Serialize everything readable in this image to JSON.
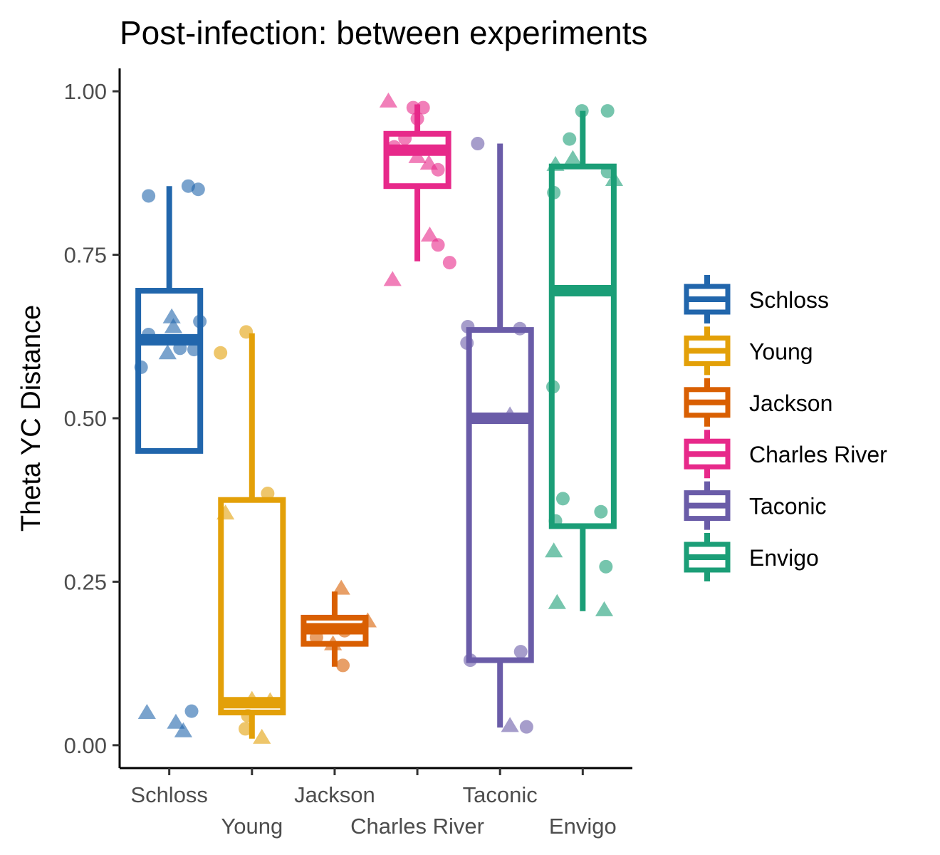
{
  "chart_data": {
    "type": "box",
    "title": "Post-infection: between experiments",
    "ylabel": "Theta YC Distance",
    "xlabel": "",
    "ylim": [
      -0.035,
      1.035
    ],
    "yticks": [
      "0.00",
      "0.25",
      "0.50",
      "0.75",
      "1.00"
    ],
    "ytick_values": [
      0,
      0.25,
      0.5,
      0.75,
      1.0
    ],
    "grid": false,
    "legend": "right",
    "categories": [
      "Schloss",
      "Young",
      "Jackson",
      "Charles River",
      "Taconic",
      "Envigo"
    ],
    "colors": [
      "#2166ac",
      "#e3a008",
      "#d95f02",
      "#e7298a",
      "#6a5ca8",
      "#1b9e77"
    ],
    "boxes": [
      {
        "name": "Schloss",
        "whisker_low": 0.45,
        "q1": 0.45,
        "median": 0.62,
        "q3": 0.695,
        "whisker_high": 0.855
      },
      {
        "name": "Young",
        "whisker_low": 0.01,
        "q1": 0.05,
        "median": 0.065,
        "q3": 0.375,
        "whisker_high": 0.63
      },
      {
        "name": "Jackson",
        "whisker_low": 0.12,
        "q1": 0.155,
        "median": 0.178,
        "q3": 0.195,
        "whisker_high": 0.235
      },
      {
        "name": "Charles River",
        "whisker_low": 0.74,
        "q1": 0.855,
        "median": 0.91,
        "q3": 0.935,
        "whisker_high": 0.98
      },
      {
        "name": "Taconic",
        "whisker_low": 0.027,
        "q1": 0.13,
        "median": 0.5,
        "q3": 0.635,
        "whisker_high": 0.92
      },
      {
        "name": "Envigo",
        "whisker_low": 0.205,
        "q1": 0.335,
        "median": 0.695,
        "q3": 0.885,
        "whisker_high": 0.97
      }
    ],
    "points": [
      {
        "group": 0,
        "dx": -0.25,
        "y": 0.84,
        "shape": "circle"
      },
      {
        "group": 0,
        "dx": 0.23,
        "y": 0.855,
        "shape": "circle"
      },
      {
        "group": 0,
        "dx": 0.35,
        "y": 0.85,
        "shape": "circle"
      },
      {
        "group": 0,
        "dx": 0.37,
        "y": 0.648,
        "shape": "circle"
      },
      {
        "group": 0,
        "dx": 0.03,
        "y": 0.655,
        "shape": "triangle"
      },
      {
        "group": 0,
        "dx": 0.05,
        "y": 0.64,
        "shape": "triangle"
      },
      {
        "group": 0,
        "dx": -0.25,
        "y": 0.628,
        "shape": "circle"
      },
      {
        "group": 0,
        "dx": -0.02,
        "y": 0.6,
        "shape": "triangle"
      },
      {
        "group": 0,
        "dx": 0.13,
        "y": 0.607,
        "shape": "circle"
      },
      {
        "group": 0,
        "dx": 0.3,
        "y": 0.605,
        "shape": "circle"
      },
      {
        "group": 0,
        "dx": -0.34,
        "y": 0.578,
        "shape": "circle"
      },
      {
        "group": 0,
        "dx": -0.27,
        "y": 0.05,
        "shape": "triangle"
      },
      {
        "group": 0,
        "dx": 0.27,
        "y": 0.052,
        "shape": "circle"
      },
      {
        "group": 0,
        "dx": 0.08,
        "y": 0.035,
        "shape": "triangle"
      },
      {
        "group": 0,
        "dx": 0.17,
        "y": 0.022,
        "shape": "triangle"
      },
      {
        "group": 1,
        "dx": -0.38,
        "y": 0.6,
        "shape": "circle"
      },
      {
        "group": 1,
        "dx": -0.07,
        "y": 0.632,
        "shape": "circle"
      },
      {
        "group": 1,
        "dx": 0.19,
        "y": 0.385,
        "shape": "circle"
      },
      {
        "group": 1,
        "dx": -0.32,
        "y": 0.355,
        "shape": "triangle"
      },
      {
        "group": 1,
        "dx": 0.0,
        "y": 0.07,
        "shape": "triangle"
      },
      {
        "group": 1,
        "dx": 0.22,
        "y": 0.068,
        "shape": "triangle"
      },
      {
        "group": 1,
        "dx": -0.05,
        "y": 0.045,
        "shape": "circle"
      },
      {
        "group": 1,
        "dx": -0.08,
        "y": 0.025,
        "shape": "circle"
      },
      {
        "group": 1,
        "dx": 0.12,
        "y": 0.012,
        "shape": "triangle"
      },
      {
        "group": 2,
        "dx": 0.08,
        "y": 0.24,
        "shape": "triangle"
      },
      {
        "group": 2,
        "dx": 0.4,
        "y": 0.19,
        "shape": "triangle"
      },
      {
        "group": 2,
        "dx": 0.12,
        "y": 0.175,
        "shape": "circle"
      },
      {
        "group": 2,
        "dx": -0.22,
        "y": 0.165,
        "shape": "circle"
      },
      {
        "group": 2,
        "dx": -0.02,
        "y": 0.155,
        "shape": "triangle"
      },
      {
        "group": 2,
        "dx": 0.1,
        "y": 0.122,
        "shape": "circle"
      },
      {
        "group": 3,
        "dx": -0.35,
        "y": 0.985,
        "shape": "triangle"
      },
      {
        "group": 3,
        "dx": -0.05,
        "y": 0.975,
        "shape": "circle"
      },
      {
        "group": 3,
        "dx": 0.07,
        "y": 0.975,
        "shape": "circle"
      },
      {
        "group": 3,
        "dx": 0.0,
        "y": 0.958,
        "shape": "circle"
      },
      {
        "group": 3,
        "dx": -0.15,
        "y": 0.928,
        "shape": "circle"
      },
      {
        "group": 3,
        "dx": -0.28,
        "y": 0.915,
        "shape": "circle"
      },
      {
        "group": 3,
        "dx": 0.0,
        "y": 0.9,
        "shape": "triangle"
      },
      {
        "group": 3,
        "dx": 0.14,
        "y": 0.89,
        "shape": "triangle"
      },
      {
        "group": 3,
        "dx": 0.25,
        "y": 0.88,
        "shape": "circle"
      },
      {
        "group": 3,
        "dx": 0.15,
        "y": 0.78,
        "shape": "triangle"
      },
      {
        "group": 3,
        "dx": 0.25,
        "y": 0.765,
        "shape": "circle"
      },
      {
        "group": 3,
        "dx": 0.39,
        "y": 0.738,
        "shape": "circle"
      },
      {
        "group": 3,
        "dx": -0.3,
        "y": 0.712,
        "shape": "triangle"
      },
      {
        "group": 4,
        "dx": -0.27,
        "y": 0.92,
        "shape": "circle"
      },
      {
        "group": 4,
        "dx": -0.39,
        "y": 0.64,
        "shape": "circle"
      },
      {
        "group": 4,
        "dx": 0.24,
        "y": 0.637,
        "shape": "circle"
      },
      {
        "group": 4,
        "dx": -0.4,
        "y": 0.615,
        "shape": "circle"
      },
      {
        "group": 4,
        "dx": 0.12,
        "y": 0.505,
        "shape": "triangle"
      },
      {
        "group": 4,
        "dx": 0.25,
        "y": 0.143,
        "shape": "circle"
      },
      {
        "group": 4,
        "dx": -0.36,
        "y": 0.13,
        "shape": "circle"
      },
      {
        "group": 4,
        "dx": 0.12,
        "y": 0.03,
        "shape": "triangle"
      },
      {
        "group": 4,
        "dx": 0.32,
        "y": 0.028,
        "shape": "circle"
      },
      {
        "group": 5,
        "dx": -0.01,
        "y": 0.97,
        "shape": "circle"
      },
      {
        "group": 5,
        "dx": 0.3,
        "y": 0.97,
        "shape": "circle"
      },
      {
        "group": 5,
        "dx": -0.16,
        "y": 0.927,
        "shape": "circle"
      },
      {
        "group": 5,
        "dx": -0.12,
        "y": 0.897,
        "shape": "triangle"
      },
      {
        "group": 5,
        "dx": -0.33,
        "y": 0.888,
        "shape": "triangle"
      },
      {
        "group": 5,
        "dx": 0.3,
        "y": 0.877,
        "shape": "circle"
      },
      {
        "group": 5,
        "dx": 0.38,
        "y": 0.865,
        "shape": "triangle"
      },
      {
        "group": 5,
        "dx": -0.35,
        "y": 0.845,
        "shape": "circle"
      },
      {
        "group": 5,
        "dx": -0.36,
        "y": 0.548,
        "shape": "circle"
      },
      {
        "group": 5,
        "dx": -0.24,
        "y": 0.377,
        "shape": "circle"
      },
      {
        "group": 5,
        "dx": 0.22,
        "y": 0.357,
        "shape": "circle"
      },
      {
        "group": 5,
        "dx": -0.33,
        "y": 0.343,
        "shape": "circle"
      },
      {
        "group": 5,
        "dx": -0.35,
        "y": 0.297,
        "shape": "triangle"
      },
      {
        "group": 5,
        "dx": 0.28,
        "y": 0.273,
        "shape": "circle"
      },
      {
        "group": 5,
        "dx": -0.31,
        "y": 0.218,
        "shape": "triangle"
      },
      {
        "group": 5,
        "dx": 0.26,
        "y": 0.207,
        "shape": "triangle"
      }
    ]
  }
}
